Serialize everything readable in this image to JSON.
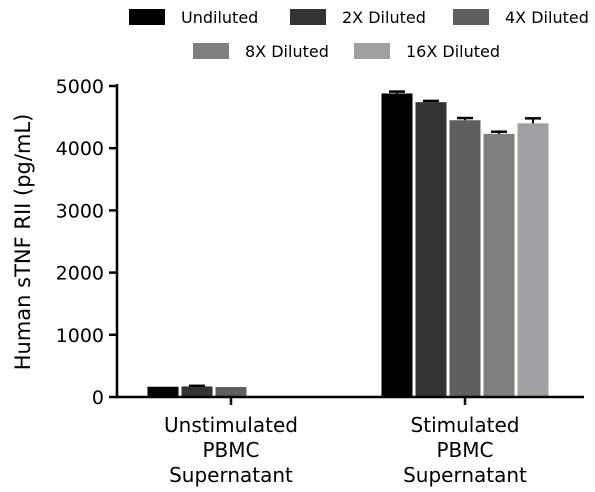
{
  "chart_data": {
    "type": "bar",
    "title": "",
    "xlabel": "",
    "ylabel": "Human sTNF RII (pg/mL)",
    "ylim": [
      0,
      5000
    ],
    "yticks": [
      0,
      1000,
      2000,
      3000,
      4000,
      5000
    ],
    "grid": false,
    "legend_position": "top",
    "categories": [
      [
        "Unstimulated",
        "PBMC",
        "Supernatant"
      ],
      [
        "Stimulated",
        "PBMC",
        "Supernatant"
      ]
    ],
    "series": [
      {
        "name": "Undiluted",
        "color": "#000000",
        "values": [
          165,
          4880
        ],
        "errors": [
          0,
          30
        ]
      },
      {
        "name": "2X Diluted",
        "color": "#333333",
        "values": [
          170,
          4740
        ],
        "errors": [
          10,
          20
        ]
      },
      {
        "name": "4X Diluted",
        "color": "#5f5f5f",
        "values": [
          160,
          4450
        ],
        "errors": [
          0,
          35
        ]
      },
      {
        "name": "8X Diluted",
        "color": "#7f7f7f",
        "values": [
          null,
          4230
        ],
        "errors": [
          0,
          35
        ]
      },
      {
        "name": "16X Diluted",
        "color": "#a0a0a4",
        "values": [
          null,
          4400
        ],
        "errors": [
          0,
          80
        ]
      }
    ]
  }
}
